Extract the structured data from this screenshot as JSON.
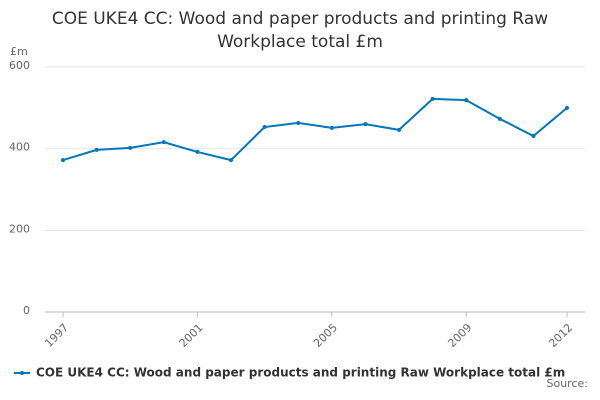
{
  "chart_data": {
    "type": "line",
    "title": "COE UKE4 CC: Wood and paper products and printing Raw Workplace total £m",
    "y_axis_label": "£m",
    "source": "Source:",
    "x": [
      1997,
      1998,
      1999,
      2000,
      2001,
      2002,
      2003,
      2004,
      2005,
      2006,
      2007,
      2008,
      2009,
      2010,
      2011,
      2012
    ],
    "series": [
      {
        "name": "COE UKE4 CC: Wood and paper products and printing Raw Workplace total £m",
        "color": "#0077bb",
        "values": [
          372,
          397,
          402,
          416,
          392,
          372,
          453,
          463,
          451,
          460,
          446,
          522,
          519,
          473,
          431,
          500
        ]
      }
    ],
    "xlim": [
      1997,
      2012
    ],
    "xticks": [
      1997,
      2001,
      2005,
      2009,
      2012
    ],
    "ylim": [
      0,
      600
    ],
    "yticks": [
      0,
      200,
      400,
      600
    ],
    "grid": true
  }
}
